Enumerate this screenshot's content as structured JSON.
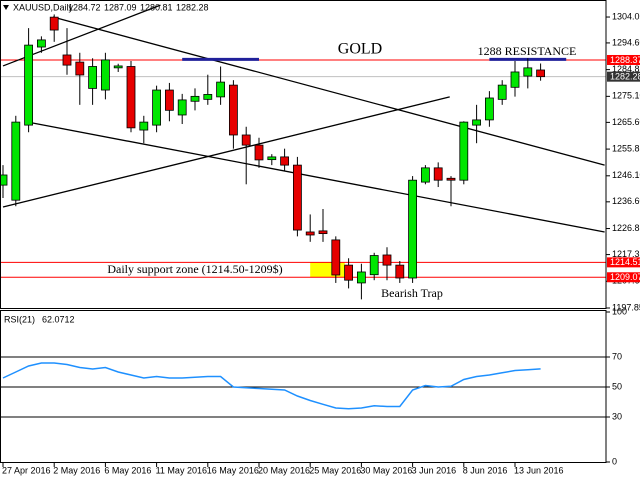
{
  "chart_data": [
    {
      "type": "candlestick",
      "title": "XAUUSD,Daily",
      "categories": [
        "27 Apr 2016",
        null,
        null,
        null,
        "2 May 2016",
        null,
        null,
        null,
        "6 May 2016",
        null,
        null,
        null,
        "11 May 2016",
        null,
        null,
        null,
        "16 May 2016",
        null,
        null,
        null,
        "20 May 2016",
        null,
        null,
        null,
        "25 May 2016",
        null,
        null,
        null,
        "30 May 2016",
        null,
        null,
        null,
        "3 Jun 2016",
        null,
        null,
        null,
        "8 Jun 2016",
        null,
        null,
        null,
        "13 Jun 2016",
        null,
        null
      ],
      "open": [
        1242.7,
        1237.2,
        1264.6,
        1293.1,
        1304.0,
        1290.2,
        1287.6,
        1278.0,
        1277.4,
        1285.5,
        1286.0,
        1262.8,
        1264.6,
        1277.4,
        1268.3,
        1273.3,
        1274.0,
        1274.9,
        1279.2,
        1261.0,
        1257.3,
        1252.0,
        1253.0,
        1250.0,
        1225.6,
        1226.0,
        1222.7,
        1213.5,
        1207.0,
        1210.0,
        1217.2,
        1213.5,
        1208.8,
        1243.8,
        1249.0,
        1245.2,
        1244.5,
        1264.6,
        1266.5,
        1274.0,
        1278.4,
        1282.5,
        1284.72
      ],
      "high": [
        1250.0,
        1268.0,
        1300.0,
        1297.0,
        1305.0,
        1300.0,
        1291.0,
        1289.0,
        1291.0,
        1287.0,
        1288.0,
        1268.0,
        1279.0,
        1280.0,
        1276.0,
        1278.0,
        1283.0,
        1286.0,
        1281.0,
        1264.0,
        1260.0,
        1254.0,
        1256.0,
        1253.0,
        1232.0,
        1234.0,
        1224.0,
        1216.0,
        1214.0,
        1218.0,
        1220.0,
        1215.0,
        1246.0,
        1250.0,
        1251.0,
        1246.0,
        1266.0,
        1272.0,
        1277.0,
        1281.0,
        1288.0,
        1289.0,
        1287.09
      ],
      "low": [
        1238.0,
        1235.0,
        1262.0,
        1291.0,
        1295.0,
        1283.0,
        1272.0,
        1272.0,
        1274.0,
        1284.0,
        1262.0,
        1258.0,
        1262.0,
        1266.0,
        1265.0,
        1270.0,
        1272.0,
        1272.0,
        1256.0,
        1243.0,
        1249.0,
        1250.0,
        1248.0,
        1224.0,
        1222.0,
        1222.0,
        1207.0,
        1205.0,
        1201.0,
        1208.0,
        1208.0,
        1207.0,
        1207.0,
        1243.0,
        1242.0,
        1235.0,
        1243.0,
        1258.0,
        1264.0,
        1272.0,
        1275.0,
        1278.0,
        1280.81
      ],
      "close": [
        1246.4,
        1265.7,
        1293.8,
        1295.7,
        1299.3,
        1286.5,
        1282.9,
        1286.0,
        1288.4,
        1286.2,
        1263.6,
        1265.7,
        1277.4,
        1270.0,
        1273.8,
        1275.1,
        1275.8,
        1280.3,
        1261.0,
        1257.3,
        1251.9,
        1253.0,
        1250.0,
        1226.3,
        1224.5,
        1225.0,
        1209.9,
        1208.0,
        1211.0,
        1217.0,
        1213.5,
        1208.8,
        1244.5,
        1249.0,
        1244.5,
        1244.5,
        1265.7,
        1266.5,
        1274.5,
        1279.2,
        1284.0,
        1285.5,
        1282.28
      ],
      "up_color": "#00e600",
      "down_color": "#e60000",
      "ylim": [
        1197.85,
        1309.9
      ],
      "yticks": [
        1304.05,
        {
          "value": 1294.6,
          "label": "1294.60"
        },
        1284.85,
        {
          "value": 1275.1,
          "label": "1275.10"
        },
        {
          "value": 1265.6,
          "label": "1265.60"
        },
        1255.85,
        {
          "value": 1246.1,
          "label": "1246.10"
        },
        {
          "value": 1236.6,
          "label": "1236.60"
        },
        1226.85,
        1217.35,
        {
          "value": 1207.6,
          "label": "1207.60"
        },
        1197.85
      ],
      "hlines": [
        {
          "value": 1288.37,
          "color": "#ff0000"
        },
        {
          "value": 1214.51,
          "color": "#ff0000"
        },
        {
          "value": 1209.07,
          "color": "#ff0000"
        }
      ],
      "trendlines": [
        {
          "points": [
            [
              0,
              1286.2
            ],
            [
              12.3,
              1308.4
            ]
          ]
        },
        {
          "points": [
            [
              3.9,
              1304.05
            ],
            [
              47,
              1250.0
            ]
          ]
        },
        {
          "points": [
            [
              1.95,
              1265.7
            ],
            [
              47,
              1225.6
            ]
          ]
        },
        {
          "points": [
            [
              0,
              1234.7
            ],
            [
              34.9,
              1274.9
            ]
          ]
        }
      ],
      "segments": [
        {
          "from": 14,
          "to": 20,
          "value": 1288.6,
          "color": "#20209a"
        },
        {
          "from": 38,
          "to": 44,
          "value": 1288.6,
          "color": "#20209a"
        }
      ],
      "zone": {
        "from": 24,
        "to": 26.7,
        "low": 1209.07,
        "high": 1214.51,
        "color": "#ffff00"
      },
      "annotations": [
        "GOLD",
        "1288 RESISTANCE",
        "Daily support zone (1214.50-1209$)",
        "Bearish Trap"
      ]
    },
    {
      "type": "line",
      "title": "RSI(21)",
      "values": [
        56,
        60,
        64,
        66,
        66,
        65,
        63,
        62,
        63,
        60,
        58,
        56,
        57,
        56,
        56,
        56.5,
        57,
        57,
        50,
        49.5,
        49,
        48.5,
        48,
        44,
        41,
        38.5,
        36,
        35.5,
        36,
        37.5,
        37,
        37,
        48,
        51,
        50,
        50.5,
        55,
        57,
        58,
        59.5,
        61,
        61.5,
        62.0712
      ],
      "color": "#1e90ff",
      "ylim": [
        0,
        100
      ],
      "yticks": [
        100,
        70,
        50,
        30,
        0
      ],
      "level_lines": [
        70,
        50,
        30
      ]
    }
  ]
}
